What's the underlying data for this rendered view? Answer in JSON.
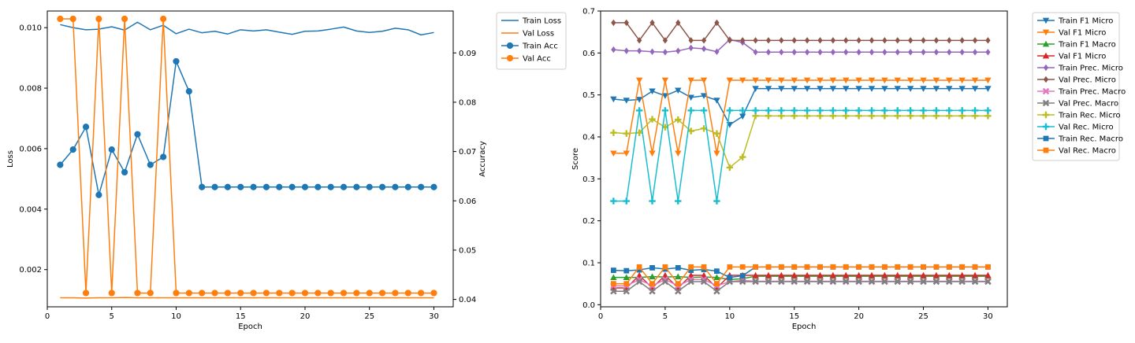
{
  "chart_data": [
    {
      "type": "line",
      "title": "",
      "xlabel": "Epoch",
      "ylabel": "Loss",
      "y2label": "Accuracy",
      "xlim": [
        0,
        31.5
      ],
      "ylim": [
        0.00077,
        0.01055
      ],
      "y2lim": [
        0.0385,
        0.0985
      ],
      "xticks": [
        0,
        5,
        10,
        15,
        20,
        25,
        30
      ],
      "yticks": [
        0.002,
        0.004,
        0.006,
        0.008,
        0.01
      ],
      "ytick_labels": [
        "0.002",
        "0.004",
        "0.006",
        "0.008",
        "0.010"
      ],
      "y2ticks": [
        0.04,
        0.05,
        0.06,
        0.07,
        0.08,
        0.09
      ],
      "y2tick_labels": [
        "0.04",
        "0.05",
        "0.06",
        "0.07",
        "0.08",
        "0.09"
      ],
      "grid": false,
      "legend_position": "outside-top-right",
      "x": [
        1,
        2,
        3,
        4,
        5,
        6,
        7,
        8,
        9,
        10,
        11,
        12,
        13,
        14,
        15,
        16,
        17,
        18,
        19,
        20,
        21,
        22,
        23,
        24,
        25,
        26,
        27,
        28,
        29,
        30
      ],
      "series": [
        {
          "name": "Train Loss",
          "axis": "left",
          "color": "#1f77b4",
          "marker": "none",
          "values": [
            0.0101,
            0.01,
            0.00993,
            0.00995,
            0.01003,
            0.00992,
            0.01018,
            0.00993,
            0.01008,
            0.0098,
            0.00995,
            0.00983,
            0.00988,
            0.00979,
            0.00993,
            0.00989,
            0.00993,
            0.00985,
            0.00978,
            0.00988,
            0.00989,
            0.00995,
            0.01002,
            0.00989,
            0.00984,
            0.00988,
            0.00998,
            0.00993,
            0.00976,
            0.00984
          ]
        },
        {
          "name": "Val Loss",
          "axis": "left",
          "color": "#ff7f0e",
          "marker": "none",
          "values": [
            0.00107,
            0.00107,
            0.00106,
            0.00107,
            0.00107,
            0.00108,
            0.00107,
            0.00107,
            0.00107,
            0.00107,
            0.00107,
            0.00107,
            0.00107,
            0.00107,
            0.00107,
            0.00107,
            0.00107,
            0.00107,
            0.00107,
            0.00107,
            0.00107,
            0.00107,
            0.00107,
            0.00107,
            0.00107,
            0.00107,
            0.00107,
            0.00107,
            0.00107,
            0.00107
          ]
        },
        {
          "name": "Train Acc",
          "axis": "right",
          "color": "#1f77b4",
          "marker": "circle",
          "values": [
            0.0673,
            0.0704,
            0.075,
            0.0612,
            0.0704,
            0.0658,
            0.0735,
            0.0673,
            0.0689,
            0.0883,
            0.0822,
            0.0628,
            0.0628,
            0.0628,
            0.0628,
            0.0628,
            0.0628,
            0.0628,
            0.0628,
            0.0628,
            0.0628,
            0.0628,
            0.0628,
            0.0628,
            0.0628,
            0.0628,
            0.0628,
            0.0628,
            0.0628,
            0.0628
          ]
        },
        {
          "name": "Val Acc",
          "axis": "right",
          "color": "#ff7f0e",
          "marker": "circle",
          "values": [
            0.0969,
            0.0969,
            0.0413,
            0.0969,
            0.0413,
            0.0969,
            0.0413,
            0.0413,
            0.0969,
            0.0413,
            0.0413,
            0.0413,
            0.0413,
            0.0413,
            0.0413,
            0.0413,
            0.0413,
            0.0413,
            0.0413,
            0.0413,
            0.0413,
            0.0413,
            0.0413,
            0.0413,
            0.0413,
            0.0413,
            0.0413,
            0.0413,
            0.0413,
            0.0413
          ]
        }
      ]
    },
    {
      "type": "line",
      "title": "",
      "xlabel": "Epoch",
      "ylabel": "Score",
      "xlim": [
        0,
        31.5
      ],
      "ylim": [
        -0.005,
        0.7
      ],
      "xticks": [
        0,
        5,
        10,
        15,
        20,
        25,
        30
      ],
      "yticks": [
        0.0,
        0.1,
        0.2,
        0.3,
        0.4,
        0.5,
        0.6,
        0.7
      ],
      "ytick_labels": [
        "0.0",
        "0.1",
        "0.2",
        "0.3",
        "0.4",
        "0.5",
        "0.6",
        "0.7"
      ],
      "grid": false,
      "legend_position": "outside-top-right",
      "x": [
        1,
        2,
        3,
        4,
        5,
        6,
        7,
        8,
        9,
        10,
        11,
        12,
        13,
        14,
        15,
        16,
        17,
        18,
        19,
        20,
        21,
        22,
        23,
        24,
        25,
        26,
        27,
        28,
        29,
        30
      ],
      "series": [
        {
          "name": "Train F1 Micro",
          "color": "#1f77b4",
          "marker": "tri-down",
          "values": [
            0.49,
            0.487,
            0.489,
            0.509,
            0.498,
            0.511,
            0.494,
            0.498,
            0.487,
            0.429,
            0.449,
            0.515,
            0.515,
            0.515,
            0.515,
            0.515,
            0.515,
            0.515,
            0.515,
            0.515,
            0.515,
            0.515,
            0.515,
            0.515,
            0.515,
            0.515,
            0.515,
            0.515,
            0.515,
            0.515
          ]
        },
        {
          "name": "Val F1 Micro",
          "color": "#ff7f0e",
          "marker": "tri-down",
          "values": [
            0.361,
            0.361,
            0.535,
            0.361,
            0.535,
            0.361,
            0.535,
            0.535,
            0.361,
            0.535,
            0.535,
            0.535,
            0.535,
            0.535,
            0.535,
            0.535,
            0.535,
            0.535,
            0.535,
            0.535,
            0.535,
            0.535,
            0.535,
            0.535,
            0.535,
            0.535,
            0.535,
            0.535,
            0.535,
            0.535
          ]
        },
        {
          "name": "Train F1 Macro",
          "color": "#2ca02c",
          "marker": "tri-up",
          "values": [
            0.065,
            0.065,
            0.065,
            0.067,
            0.066,
            0.067,
            0.065,
            0.066,
            0.065,
            0.06,
            0.062,
            0.068,
            0.068,
            0.068,
            0.068,
            0.068,
            0.068,
            0.068,
            0.068,
            0.068,
            0.068,
            0.068,
            0.068,
            0.068,
            0.068,
            0.068,
            0.068,
            0.068,
            0.068,
            0.068
          ]
        },
        {
          "name": "Val F1 Micro",
          "color": "#d62728",
          "marker": "tri-up",
          "values": [
            0.04,
            0.04,
            0.07,
            0.04,
            0.07,
            0.04,
            0.07,
            0.07,
            0.04,
            0.07,
            0.07,
            0.07,
            0.07,
            0.07,
            0.07,
            0.07,
            0.07,
            0.07,
            0.07,
            0.07,
            0.07,
            0.07,
            0.07,
            0.07,
            0.07,
            0.07,
            0.07,
            0.07,
            0.07,
            0.07
          ]
        },
        {
          "name": "Train Prec. Micro",
          "color": "#9467bd",
          "marker": "diamond",
          "values": [
            0.608,
            0.605,
            0.605,
            0.603,
            0.602,
            0.605,
            0.612,
            0.61,
            0.603,
            0.632,
            0.625,
            0.602,
            0.602,
            0.602,
            0.602,
            0.602,
            0.602,
            0.602,
            0.602,
            0.602,
            0.602,
            0.602,
            0.602,
            0.602,
            0.602,
            0.602,
            0.602,
            0.602,
            0.602,
            0.602
          ]
        },
        {
          "name": "Val Prec. Micro",
          "color": "#8c564b",
          "marker": "diamond",
          "values": [
            0.672,
            0.672,
            0.63,
            0.672,
            0.63,
            0.672,
            0.63,
            0.63,
            0.672,
            0.63,
            0.63,
            0.63,
            0.63,
            0.63,
            0.63,
            0.63,
            0.63,
            0.63,
            0.63,
            0.63,
            0.63,
            0.63,
            0.63,
            0.63,
            0.63,
            0.63,
            0.63,
            0.63,
            0.63,
            0.63
          ]
        },
        {
          "name": "Train Prec. Macro",
          "color": "#e377c2",
          "marker": "x",
          "values": [
            0.045,
            0.045,
            0.06,
            0.045,
            0.06,
            0.045,
            0.06,
            0.06,
            0.045,
            0.055,
            0.058,
            0.056,
            0.056,
            0.056,
            0.056,
            0.056,
            0.056,
            0.056,
            0.056,
            0.056,
            0.056,
            0.056,
            0.056,
            0.056,
            0.056,
            0.056,
            0.056,
            0.056,
            0.056,
            0.056
          ]
        },
        {
          "name": "Val Prec. Macro",
          "color": "#7f7f7f",
          "marker": "x",
          "values": [
            0.032,
            0.032,
            0.055,
            0.032,
            0.055,
            0.032,
            0.055,
            0.055,
            0.032,
            0.055,
            0.055,
            0.055,
            0.055,
            0.055,
            0.055,
            0.055,
            0.055,
            0.055,
            0.055,
            0.055,
            0.055,
            0.055,
            0.055,
            0.055,
            0.055,
            0.055,
            0.055,
            0.055,
            0.055,
            0.055
          ]
        },
        {
          "name": "Train Rec. Micro",
          "color": "#bcbd22",
          "marker": "plus",
          "values": [
            0.41,
            0.408,
            0.41,
            0.442,
            0.423,
            0.441,
            0.414,
            0.42,
            0.408,
            0.327,
            0.352,
            0.45,
            0.45,
            0.45,
            0.45,
            0.45,
            0.45,
            0.45,
            0.45,
            0.45,
            0.45,
            0.45,
            0.45,
            0.45,
            0.45,
            0.45,
            0.45,
            0.45,
            0.45,
            0.45
          ]
        },
        {
          "name": "Val Rec. Micro",
          "color": "#17becf",
          "marker": "plus",
          "values": [
            0.247,
            0.247,
            0.463,
            0.247,
            0.463,
            0.247,
            0.463,
            0.463,
            0.247,
            0.463,
            0.463,
            0.463,
            0.463,
            0.463,
            0.463,
            0.463,
            0.463,
            0.463,
            0.463,
            0.463,
            0.463,
            0.463,
            0.463,
            0.463,
            0.463,
            0.463,
            0.463,
            0.463,
            0.463,
            0.463
          ]
        },
        {
          "name": "Train Rec. Macro",
          "color": "#1f77b4",
          "marker": "square",
          "values": [
            0.082,
            0.081,
            0.083,
            0.088,
            0.085,
            0.088,
            0.082,
            0.084,
            0.08,
            0.065,
            0.069,
            0.09,
            0.09,
            0.09,
            0.09,
            0.09,
            0.09,
            0.09,
            0.09,
            0.09,
            0.09,
            0.09,
            0.09,
            0.09,
            0.09,
            0.09,
            0.09,
            0.09,
            0.09,
            0.09
          ]
        },
        {
          "name": "Val Rec. Macro",
          "color": "#ff7f0e",
          "marker": "square",
          "values": [
            0.05,
            0.05,
            0.09,
            0.05,
            0.09,
            0.05,
            0.09,
            0.09,
            0.05,
            0.09,
            0.09,
            0.09,
            0.09,
            0.09,
            0.09,
            0.09,
            0.09,
            0.09,
            0.09,
            0.09,
            0.09,
            0.09,
            0.09,
            0.09,
            0.09,
            0.09,
            0.09,
            0.09,
            0.09,
            0.09
          ]
        }
      ]
    }
  ]
}
